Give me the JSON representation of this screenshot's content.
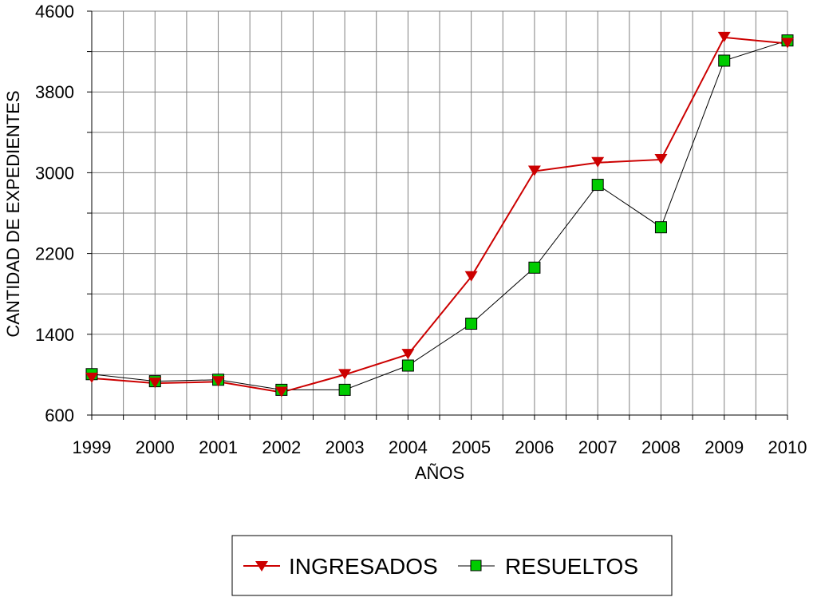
{
  "chart_data": {
    "type": "line",
    "xlabel": "AÑOS",
    "ylabel": "CANTIDAD DE EXPEDIENTES",
    "x": [
      "1999",
      "2000",
      "2001",
      "2002",
      "2003",
      "2004",
      "2005",
      "2006",
      "2007",
      "2008",
      "2009",
      "2010"
    ],
    "ylim": [
      600,
      4600
    ],
    "yticks": [
      "600",
      "1400",
      "2200",
      "3000",
      "3800",
      "4600"
    ],
    "grid": true,
    "legend": "bottom-center",
    "series": [
      {
        "name": "INGRESADOS",
        "color": "#cc0000",
        "marker": "triangle-down",
        "values": [
          965,
          915,
          930,
          825,
          1000,
          1200,
          1970,
          3015,
          3100,
          3130,
          4340,
          4280
        ]
      },
      {
        "name": "RESUELTOS",
        "color": "#00cc00",
        "line_color": "#000000",
        "marker": "square",
        "values": [
          1005,
          935,
          950,
          850,
          850,
          1090,
          1505,
          2060,
          2880,
          2460,
          4110,
          4310
        ]
      }
    ]
  }
}
